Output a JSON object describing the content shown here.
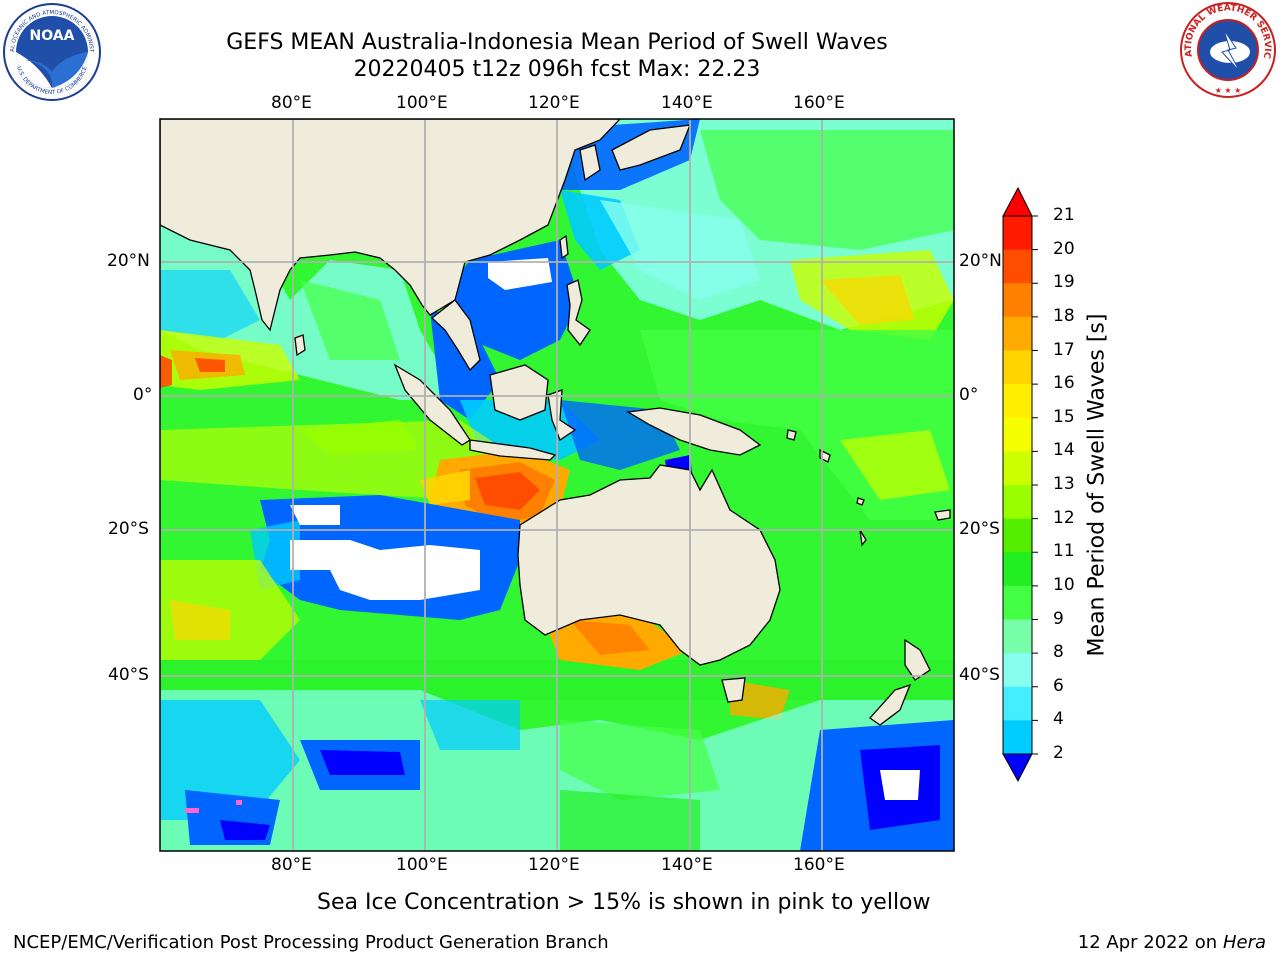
{
  "title": {
    "line1": "GEFS MEAN Australia-Indonesia Mean Period of Swell Waves",
    "line2": "20220405 t12z 096h fcst   Max: 22.23"
  },
  "map": {
    "lon_ticks_top": [
      "80°E",
      "100°E",
      "120°E",
      "140°E",
      "160°E"
    ],
    "lon_ticks_bottom": [
      "80°E",
      "100°E",
      "120°E",
      "140°E",
      "160°E"
    ],
    "lat_ticks_left": [
      "20°N",
      "0°",
      "20°S",
      "40°S"
    ],
    "lat_ticks_right": [
      "20°N",
      "0°",
      "20°S",
      "40°S"
    ],
    "land_color": "#efecdc",
    "grid_color": "#b0b0b0"
  },
  "colorbar": {
    "title": "Mean Period of Swell Waves [s]",
    "ticks": [
      "21",
      "20",
      "19",
      "18",
      "17",
      "16",
      "15",
      "14",
      "13",
      "12",
      "11",
      "10",
      "9",
      "8",
      "6",
      "4",
      "2"
    ],
    "colors": [
      "#ff1a00",
      "#ff4d00",
      "#ff8000",
      "#ffaa00",
      "#ffd500",
      "#ffee00",
      "#f5ff00",
      "#ccff00",
      "#99ff00",
      "#55ee00",
      "#22ee22",
      "#44ff44",
      "#77ffaa",
      "#88ffee",
      "#44eeff",
      "#00ccff",
      "#0066ff"
    ],
    "over_color": "#ff0000",
    "under_color": "#0000ff"
  },
  "note": "Sea Ice Concentration > 15% is shown in pink to yellow",
  "footer": {
    "left": "NCEP/EMC/Verification Post Processing Product Generation Branch",
    "right_date": "12 Apr 2022 on ",
    "right_host": "Hera"
  },
  "logos": {
    "noaa": "NOAA",
    "noaa_ring": "NATIONAL OCEANIC AND ATMOSPHERIC ADMINISTRATION",
    "noaa_ring_bottom": "U.S. DEPARTMENT OF COMMERCE",
    "nws_ring": "NATIONAL WEATHER SERVICE"
  }
}
